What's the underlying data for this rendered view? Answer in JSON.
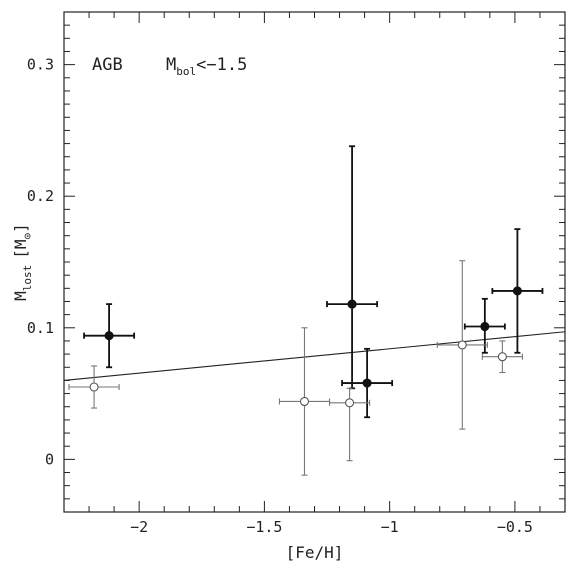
{
  "chart_data": {
    "type": "scatter",
    "xlabel": "[Fe/H]",
    "ylabel_main": "M",
    "ylabel_sub": "lost",
    "ylabel_unit_open": "[M",
    "ylabel_unit_sub": "⊙",
    "ylabel_unit_close": "]",
    "annotation_text": "AGB",
    "annotation_m": "M",
    "annotation_m_sub": "bol",
    "annotation_cond": "<−1.5",
    "xlim": [
      -2.3,
      -0.3
    ],
    "ylim": [
      -0.04,
      0.34
    ],
    "x_ticks": [
      -2,
      -1.5,
      -1,
      -0.5
    ],
    "x_tick_labels": [
      "−2",
      "−1.5",
      "−1",
      "−0.5"
    ],
    "y_ticks": [
      0,
      0.1,
      0.2,
      0.3
    ],
    "y_tick_labels": [
      "0",
      "0.1",
      "0.2",
      "0.3"
    ],
    "fit_line": {
      "x": [
        -2.3,
        -0.3
      ],
      "y": [
        0.06,
        0.097
      ]
    },
    "series": [
      {
        "marker": "filled",
        "points": [
          {
            "x": -2.12,
            "y": 0.094,
            "xerr": 0.1,
            "yerr_low": 0.024,
            "yerr_high": 0.024
          },
          {
            "x": -1.15,
            "y": 0.118,
            "xerr": 0.1,
            "yerr_low": 0.064,
            "yerr_high": 0.12
          },
          {
            "x": -1.09,
            "y": 0.058,
            "xerr": 0.1,
            "yerr_low": 0.026,
            "yerr_high": 0.026
          },
          {
            "x": -0.62,
            "y": 0.101,
            "xerr": 0.08,
            "yerr_low": 0.02,
            "yerr_high": 0.021
          },
          {
            "x": -0.49,
            "y": 0.128,
            "xerr": 0.1,
            "yerr_low": 0.047,
            "yerr_high": 0.047
          }
        ]
      },
      {
        "marker": "open",
        "points": [
          {
            "x": -2.18,
            "y": 0.055,
            "xerr": 0.1,
            "yerr_low": 0.016,
            "yerr_high": 0.016
          },
          {
            "x": -1.34,
            "y": 0.044,
            "xerr": 0.1,
            "yerr_low": 0.056,
            "yerr_high": 0.056
          },
          {
            "x": -1.16,
            "y": 0.043,
            "xerr": 0.08,
            "yerr_low": 0.044,
            "yerr_high": 0.011
          },
          {
            "x": -0.71,
            "y": 0.087,
            "xerr": 0.1,
            "yerr_low": 0.064,
            "yerr_high": 0.064
          },
          {
            "x": -0.55,
            "y": 0.078,
            "xerr": 0.08,
            "yerr_low": 0.012,
            "yerr_high": 0.012
          }
        ]
      }
    ]
  }
}
